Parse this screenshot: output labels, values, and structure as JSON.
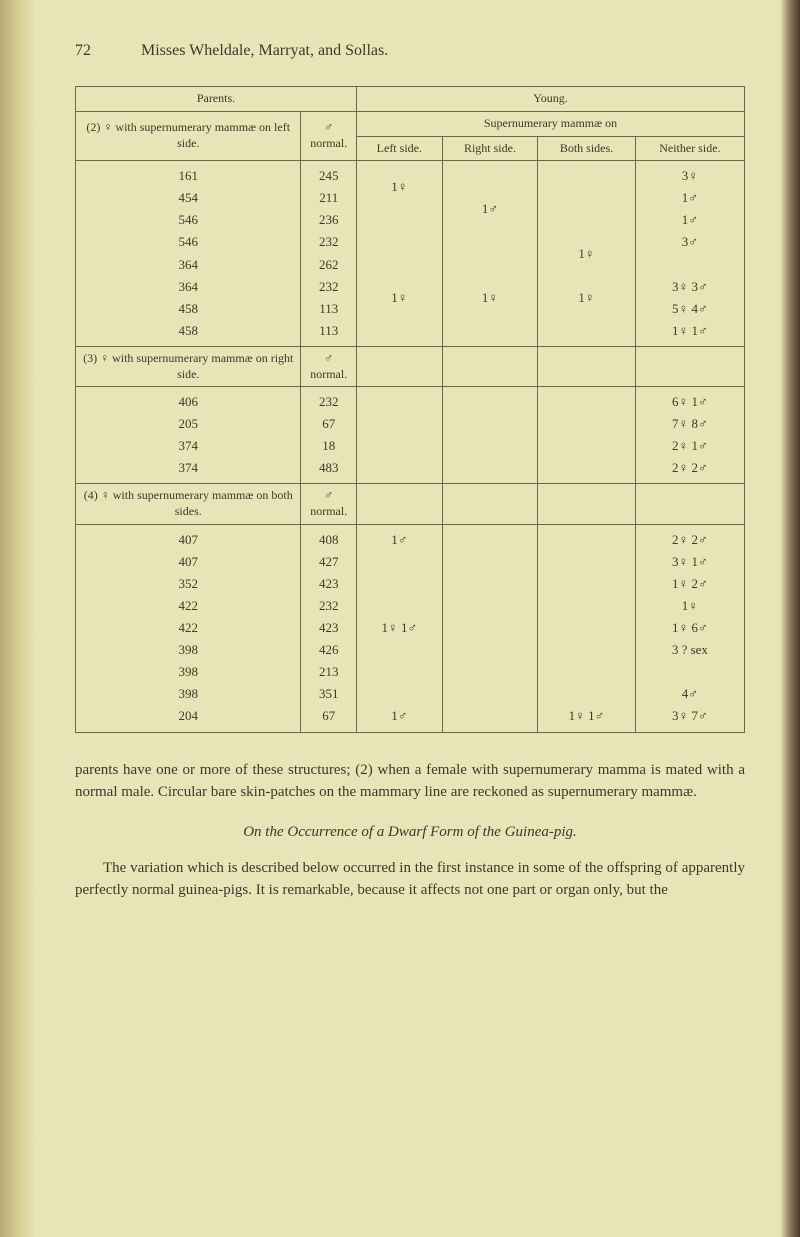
{
  "header": {
    "page_number": "72",
    "running_title": "Misses Wheldale, Marryat, and Sollas."
  },
  "table": {
    "headings": {
      "parents": "Parents.",
      "young": "Young.",
      "male_normal": "♂ normal.",
      "supernumerary": "Supernumerary mammæ on",
      "left_side": "Left side.",
      "right_side": "Right side.",
      "both_sides": "Both sides.",
      "neither_side": "Neither side."
    },
    "groups": {
      "g2": {
        "label": "(2) ♀ with supernumerary mammæ on left side.",
        "females": "161\n454\n546\n546\n364\n364\n458\n458",
        "males": "245\n211\n236\n232\n262\n232\n113\n113",
        "left": "1♀\n\n\n\n\n1♀\n\n",
        "right": "\n1♂\n\n\n\n1♀\n\n",
        "both": "\n\n\n1♀\n\n1♀\n\n",
        "neither": "3♀\n1♂\n1♂\n3♂\n\n3♀    3♂\n5♀    4♂\n1♀    1♂"
      },
      "g3": {
        "label": "(3) ♀ with supernumerary mammæ on right side.",
        "male_header": "♂ normal.",
        "females": "406\n205\n374\n374",
        "males": "232\n67\n18\n483",
        "left": "",
        "right": "",
        "both": "",
        "neither": "6♀    1♂\n7♀    8♂\n2♀    1♂\n2♀    2♂"
      },
      "g4": {
        "label": "(4) ♀ with supernumerary mammæ on both sides.",
        "male_header": "♂ normal.",
        "females": "407\n407\n352\n422\n422\n398\n398\n398\n204",
        "males": "408\n427\n423\n232\n423\n426\n213\n351\n67",
        "left": "1♂\n\n\n\n1♀   1♂\n\n\n\n1♂",
        "right": "",
        "both": "\n\n\n\n\n\n\n\n1♀    1♂",
        "neither": "2♀    2♂\n3♀    1♂\n1♀    2♂\n1♀\n1♀    6♂\n3 ? sex\n\n4♂\n3♀    7♂"
      }
    }
  },
  "body": {
    "para1": "parents have one or more of these structures; (2) when a female with supernumerary mamma is mated with a normal male. Circular bare skin-patches on the mammary line are reckoned as supernumerary mammæ.",
    "subheading": "On the Occurrence of a Dwarf Form of the Guinea-pig.",
    "para2": "The variation which is described below occurred in the first instance in some of the offspring of apparently perfectly normal guinea-pigs. It is remarkable, because it affects not one part or organ only, but the"
  }
}
